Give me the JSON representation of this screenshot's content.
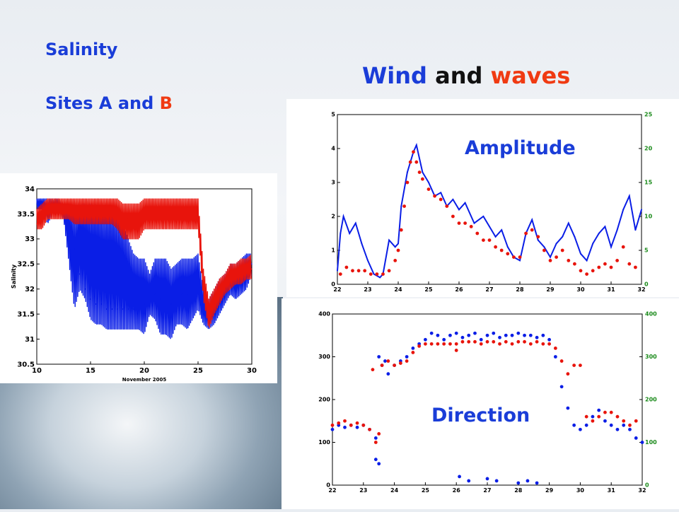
{
  "titles": {
    "salinity": "Salinity",
    "sites_prefix": "Sites A and ",
    "sites_b": "B",
    "wind": "Wind",
    "and": "and",
    "waves": "waves",
    "amplitude": "Amplitude",
    "direction": "Direction"
  },
  "colors": {
    "siteA": "#0a1ee6",
    "siteB": "#e8140c",
    "title_blue": "#1a3dd8",
    "title_red": "#f03a12",
    "right_axis": "#1a8a1a"
  },
  "chart_data": [
    {
      "id": "salinity",
      "type": "line",
      "xlabel": "November 2005",
      "ylabel": "Salinity",
      "xlim": [
        10,
        30
      ],
      "ylim": [
        30.5,
        34
      ],
      "xticks": [
        10,
        15,
        20,
        25,
        30
      ],
      "yticks": [
        30.5,
        31,
        31.5,
        32,
        32.5,
        33,
        33.5,
        34
      ],
      "xtick_labels": [
        "10",
        "15",
        "20",
        "25",
        "30"
      ],
      "ytick_labels": [
        "30.5",
        "31",
        "31.5",
        "32",
        "32.5",
        "33",
        "33.5",
        "34"
      ],
      "series": [
        {
          "color": "blue",
          "x": [
            10,
            10.5,
            11,
            11.5,
            12,
            12.5,
            13,
            13.5,
            14,
            14.5,
            15,
            15.5,
            16,
            16.5,
            17,
            17.5,
            18,
            18.5,
            19,
            19.5,
            20,
            20.5,
            21,
            21.5,
            22,
            22.5,
            23,
            23.5,
            24,
            24.5,
            25,
            25.5,
            26,
            26.5,
            27,
            27.5,
            28,
            28.5,
            29,
            29.5,
            30
          ],
          "y": [
            33.7,
            33.7,
            33.6,
            33.7,
            33.6,
            33.5,
            33.4,
            32.8,
            32.3,
            32.0,
            31.8,
            31.7,
            31.7,
            31.6,
            31.6,
            31.6,
            31.6,
            31.6,
            31.6,
            31.7,
            31.7,
            31.8,
            31.9,
            31.8,
            31.8,
            31.7,
            31.8,
            31.9,
            31.9,
            32.0,
            32.1,
            31.7,
            31.4,
            31.6,
            31.8,
            32.0,
            32.2,
            32.2,
            32.3,
            32.4,
            32.5
          ],
          "ymin": [
            33.6,
            33.6,
            33.3,
            33.5,
            33.5,
            33.4,
            32.5,
            31.6,
            32.0,
            31.8,
            31.4,
            31.3,
            31.3,
            31.2,
            31.2,
            31.2,
            31.2,
            31.2,
            31.2,
            31.2,
            31.1,
            31.5,
            31.4,
            31.1,
            31.1,
            31.0,
            31.3,
            31.3,
            31.2,
            31.4,
            31.6,
            31.3,
            31.2,
            31.3,
            31.5,
            31.7,
            31.9,
            31.8,
            31.9,
            32.0,
            32.3
          ],
          "ymax": [
            33.8,
            33.8,
            33.8,
            33.8,
            33.8,
            33.7,
            33.7,
            33.5,
            33.7,
            33.7,
            33.7,
            33.7,
            33.6,
            33.6,
            33.6,
            33.5,
            33.3,
            33.0,
            32.7,
            32.6,
            32.6,
            32.3,
            32.6,
            32.6,
            32.6,
            32.4,
            32.5,
            32.6,
            32.6,
            32.6,
            32.7,
            32.0,
            31.8,
            32.0,
            32.2,
            32.3,
            32.5,
            32.5,
            32.6,
            32.7,
            32.7
          ]
        },
        {
          "color": "red",
          "x": [
            10,
            10.5,
            11,
            11.5,
            12,
            12.5,
            13,
            13.5,
            14,
            14.5,
            15,
            15.5,
            16,
            16.5,
            17,
            17.5,
            18,
            18.5,
            19,
            19.5,
            20,
            20.5,
            21,
            21.5,
            22,
            22.5,
            23,
            23.5,
            24,
            24.5,
            25,
            25.5,
            26,
            26.5,
            27,
            27.5,
            28,
            28.5,
            29,
            29.5,
            30
          ],
          "y": [
            33.3,
            33.4,
            33.6,
            33.6,
            33.6,
            33.6,
            33.6,
            33.6,
            33.6,
            33.6,
            33.6,
            33.6,
            33.6,
            33.6,
            33.6,
            33.5,
            33.4,
            33.4,
            33.4,
            33.4,
            33.5,
            33.5,
            33.5,
            33.5,
            33.5,
            33.5,
            33.5,
            33.5,
            33.5,
            33.5,
            33.5,
            32.0,
            31.5,
            31.7,
            31.9,
            32.1,
            32.2,
            32.3,
            32.3,
            32.4,
            32.4
          ],
          "ymin": [
            33.2,
            33.2,
            33.4,
            33.4,
            33.4,
            33.4,
            33.4,
            33.3,
            33.3,
            33.3,
            33.3,
            33.3,
            33.3,
            33.3,
            33.3,
            33.2,
            33.0,
            33.0,
            33.0,
            33.0,
            33.2,
            33.2,
            33.2,
            33.2,
            33.2,
            33.2,
            33.2,
            33.2,
            33.2,
            33.2,
            33.2,
            31.8,
            31.2,
            31.5,
            31.7,
            31.9,
            32.0,
            32.1,
            32.1,
            32.2,
            32.2
          ],
          "ymax": [
            33.6,
            33.7,
            33.8,
            33.8,
            33.8,
            33.8,
            33.8,
            33.8,
            33.8,
            33.8,
            33.8,
            33.8,
            33.8,
            33.8,
            33.8,
            33.8,
            33.7,
            33.7,
            33.7,
            33.7,
            33.8,
            33.8,
            33.8,
            33.8,
            33.8,
            33.8,
            33.8,
            33.8,
            33.8,
            33.8,
            33.8,
            32.4,
            31.8,
            32.0,
            32.2,
            32.3,
            32.5,
            32.5,
            32.6,
            32.6,
            32.7
          ]
        }
      ]
    },
    {
      "id": "amplitude",
      "type": "line",
      "xlim": [
        22,
        32
      ],
      "ylim": [
        0,
        5
      ],
      "ylim_right": [
        0,
        25
      ],
      "xticks": [
        22,
        23,
        24,
        25,
        26,
        27,
        28,
        29,
        30,
        31,
        32
      ],
      "yticks": [
        0,
        1,
        2,
        3,
        4,
        5
      ],
      "yticks_right": [
        0,
        5,
        10,
        15,
        20,
        25
      ],
      "xtick_labels": [
        "22",
        "23",
        "24",
        "25",
        "26",
        "27",
        "28",
        "29",
        "30",
        "31",
        "32"
      ],
      "ytick_labels": [
        "0",
        "1",
        "2",
        "3",
        "4",
        "5"
      ],
      "ytick_right_labels": [
        "0",
        "5",
        "10",
        "15",
        "20",
        "25"
      ],
      "series": [
        {
          "color": "blue",
          "style": "line",
          "x": [
            22,
            22.1,
            22.2,
            22.4,
            22.6,
            22.8,
            23,
            23.2,
            23.4,
            23.5,
            23.7,
            23.9,
            24,
            24.1,
            24.3,
            24.5,
            24.6,
            24.8,
            25,
            25.2,
            25.4,
            25.6,
            25.8,
            26,
            26.2,
            26.5,
            26.8,
            27,
            27.2,
            27.4,
            27.6,
            27.8,
            28,
            28.2,
            28.4,
            28.6,
            28.8,
            29,
            29.2,
            29.4,
            29.6,
            29.8,
            30,
            30.2,
            30.4,
            30.6,
            30.8,
            31,
            31.2,
            31.4,
            31.6,
            31.8,
            32
          ],
          "y": [
            0.4,
            1.5,
            2.0,
            1.5,
            1.8,
            1.2,
            0.7,
            0.3,
            0.2,
            0.3,
            1.3,
            1.1,
            1.2,
            2.3,
            3.3,
            3.9,
            4.1,
            3.3,
            3.0,
            2.6,
            2.7,
            2.3,
            2.5,
            2.2,
            2.4,
            1.8,
            2.0,
            1.7,
            1.4,
            1.6,
            1.1,
            0.8,
            0.7,
            1.5,
            1.9,
            1.3,
            1.1,
            0.8,
            1.2,
            1.4,
            1.8,
            1.4,
            0.9,
            0.7,
            1.2,
            1.5,
            1.7,
            1.1,
            1.6,
            2.2,
            2.6,
            1.6,
            2.2
          ]
        },
        {
          "color": "red",
          "style": "dots",
          "x": [
            22.1,
            22.3,
            22.5,
            22.7,
            22.9,
            23.1,
            23.3,
            23.5,
            23.7,
            23.9,
            24,
            24.1,
            24.2,
            24.3,
            24.4,
            24.5,
            24.6,
            24.7,
            24.8,
            25,
            25.2,
            25.4,
            25.6,
            25.8,
            26,
            26.2,
            26.4,
            26.6,
            26.8,
            27,
            27.2,
            27.4,
            27.6,
            27.8,
            28,
            28.2,
            28.4,
            28.6,
            28.8,
            29,
            29.2,
            29.4,
            29.6,
            29.8,
            30,
            30.2,
            30.4,
            30.6,
            30.8,
            31,
            31.2,
            31.4,
            31.6,
            31.8
          ],
          "y": [
            0.3,
            0.5,
            0.4,
            0.4,
            0.4,
            0.3,
            0.3,
            0.3,
            0.4,
            0.7,
            1.0,
            1.6,
            2.3,
            3.0,
            3.6,
            3.9,
            3.6,
            3.3,
            3.1,
            2.8,
            2.6,
            2.5,
            2.3,
            2.0,
            1.8,
            1.8,
            1.7,
            1.5,
            1.3,
            1.3,
            1.1,
            1.0,
            0.9,
            0.8,
            0.8,
            1.5,
            1.6,
            1.4,
            1.0,
            0.7,
            0.8,
            1.0,
            0.7,
            0.6,
            0.4,
            0.3,
            0.4,
            0.5,
            0.6,
            0.5,
            0.7,
            1.1,
            0.6,
            0.5
          ]
        }
      ]
    },
    {
      "id": "direction",
      "type": "scatter",
      "xlim": [
        22,
        32
      ],
      "ylim": [
        0,
        400
      ],
      "ylim_right": [
        0,
        400
      ],
      "xticks": [
        22,
        23,
        24,
        25,
        26,
        27,
        28,
        29,
        30,
        31,
        32
      ],
      "yticks": [
        0,
        100,
        200,
        300,
        400
      ],
      "yticks_right": [
        0,
        100,
        200,
        300,
        400
      ],
      "xtick_labels": [
        "22",
        "23",
        "24",
        "25",
        "26",
        "27",
        "28",
        "29",
        "30",
        "31",
        "32"
      ],
      "ytick_labels": [
        "0",
        "100",
        "200",
        "300",
        "400"
      ],
      "ytick_right_labels": [
        "0",
        "100",
        "200",
        "300",
        "400"
      ],
      "series": [
        {
          "color": "blue",
          "x": [
            22,
            22.2,
            22.4,
            22.6,
            22.8,
            23,
            23.2,
            23.4,
            23.5,
            23.6,
            23.7,
            23.8,
            24,
            24.2,
            24.4,
            24.6,
            24.8,
            25,
            25.2,
            25.4,
            25.6,
            25.8,
            26,
            26.2,
            26.4,
            26.6,
            26.8,
            27,
            27.2,
            27.4,
            27.6,
            27.8,
            28,
            28.2,
            28.4,
            28.6,
            28.8,
            29,
            29.2,
            29.4,
            29.6,
            29.8,
            30,
            30.2,
            30.4,
            30.6,
            30.8,
            31,
            31.2,
            31.4,
            31.6,
            31.8,
            32,
            26.1,
            26.4,
            27.0,
            27.3,
            28.0,
            28.3,
            28.6,
            23.4,
            23.5
          ],
          "y": [
            130,
            140,
            135,
            140,
            135,
            140,
            130,
            110,
            300,
            280,
            290,
            260,
            280,
            290,
            300,
            320,
            330,
            340,
            355,
            350,
            340,
            350,
            355,
            345,
            350,
            355,
            340,
            350,
            355,
            345,
            350,
            350,
            355,
            350,
            350,
            345,
            350,
            340,
            300,
            230,
            180,
            140,
            130,
            140,
            160,
            175,
            150,
            140,
            130,
            140,
            130,
            110,
            100,
            20,
            10,
            15,
            10,
            5,
            10,
            5,
            60,
            50
          ]
        },
        {
          "color": "red",
          "x": [
            22,
            22.2,
            22.4,
            22.6,
            22.8,
            23,
            23.2,
            23.4,
            23.6,
            23.8,
            24,
            24.2,
            24.4,
            24.6,
            24.8,
            25,
            25.2,
            25.4,
            25.6,
            25.8,
            26,
            26.2,
            26.4,
            26.6,
            26.8,
            27,
            27.2,
            27.4,
            27.6,
            27.8,
            28,
            28.2,
            28.4,
            28.6,
            28.8,
            29,
            29.2,
            29.4,
            29.6,
            29.8,
            30,
            30.2,
            30.4,
            30.6,
            30.8,
            31,
            31.2,
            31.4,
            31.6,
            31.8,
            23.3,
            26.0,
            23.5
          ],
          "y": [
            140,
            145,
            150,
            140,
            145,
            140,
            130,
            100,
            280,
            290,
            280,
            285,
            290,
            310,
            325,
            330,
            330,
            330,
            330,
            330,
            330,
            335,
            335,
            335,
            330,
            335,
            335,
            330,
            335,
            330,
            335,
            335,
            330,
            335,
            330,
            330,
            320,
            290,
            260,
            280,
            280,
            160,
            150,
            160,
            170,
            170,
            160,
            150,
            140,
            150,
            270,
            315,
            120
          ]
        }
      ]
    }
  ]
}
